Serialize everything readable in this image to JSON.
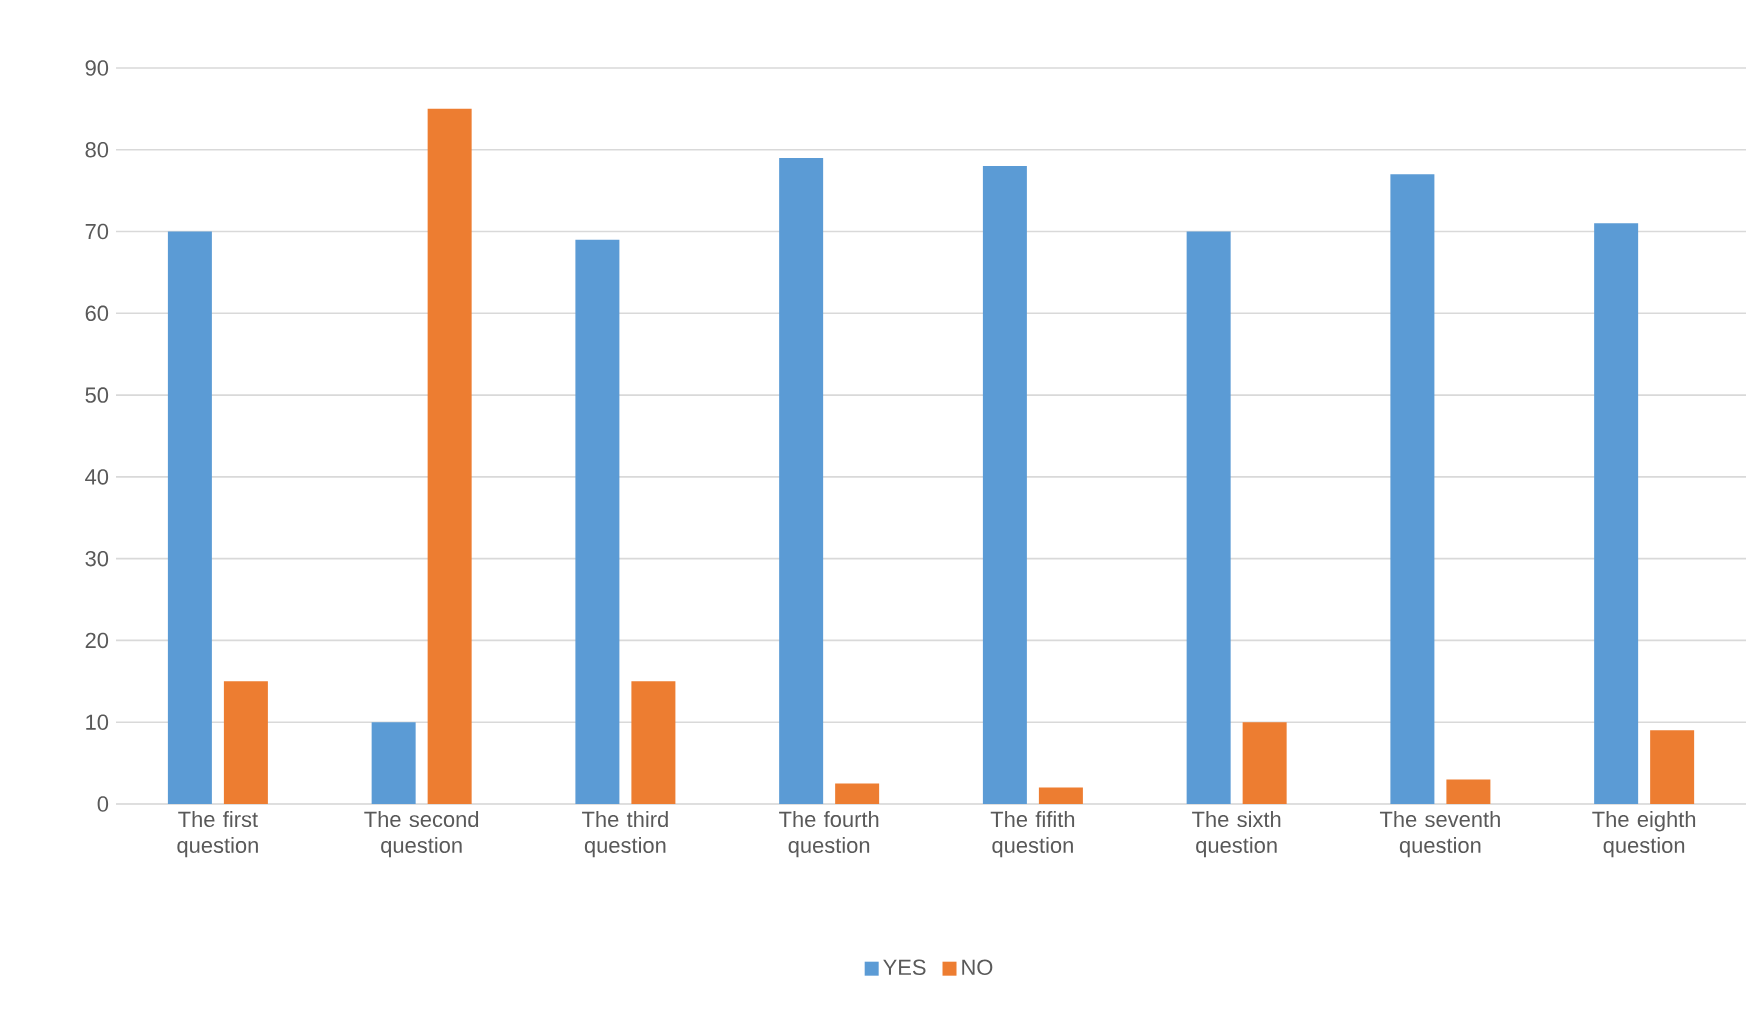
{
  "chart_data": {
    "type": "bar",
    "categories": [
      "The first question",
      "The second question",
      "The third question",
      "The fourth question",
      "The fifith question",
      "The sixth question",
      "The seventh question",
      "The eighth question"
    ],
    "series": [
      {
        "name": "YES",
        "color": "#5b9bd5",
        "values": [
          70,
          10,
          69,
          79,
          78,
          70,
          77,
          71
        ]
      },
      {
        "name": "NO",
        "color": "#ed7d31",
        "values": [
          15,
          85,
          15,
          2.5,
          2,
          10,
          3,
          9
        ]
      }
    ],
    "ylim": [
      0,
      90
    ],
    "yticks": [
      0,
      10,
      20,
      30,
      40,
      50,
      60,
      70,
      80,
      90
    ],
    "grid": "y",
    "legend": "bottom"
  }
}
